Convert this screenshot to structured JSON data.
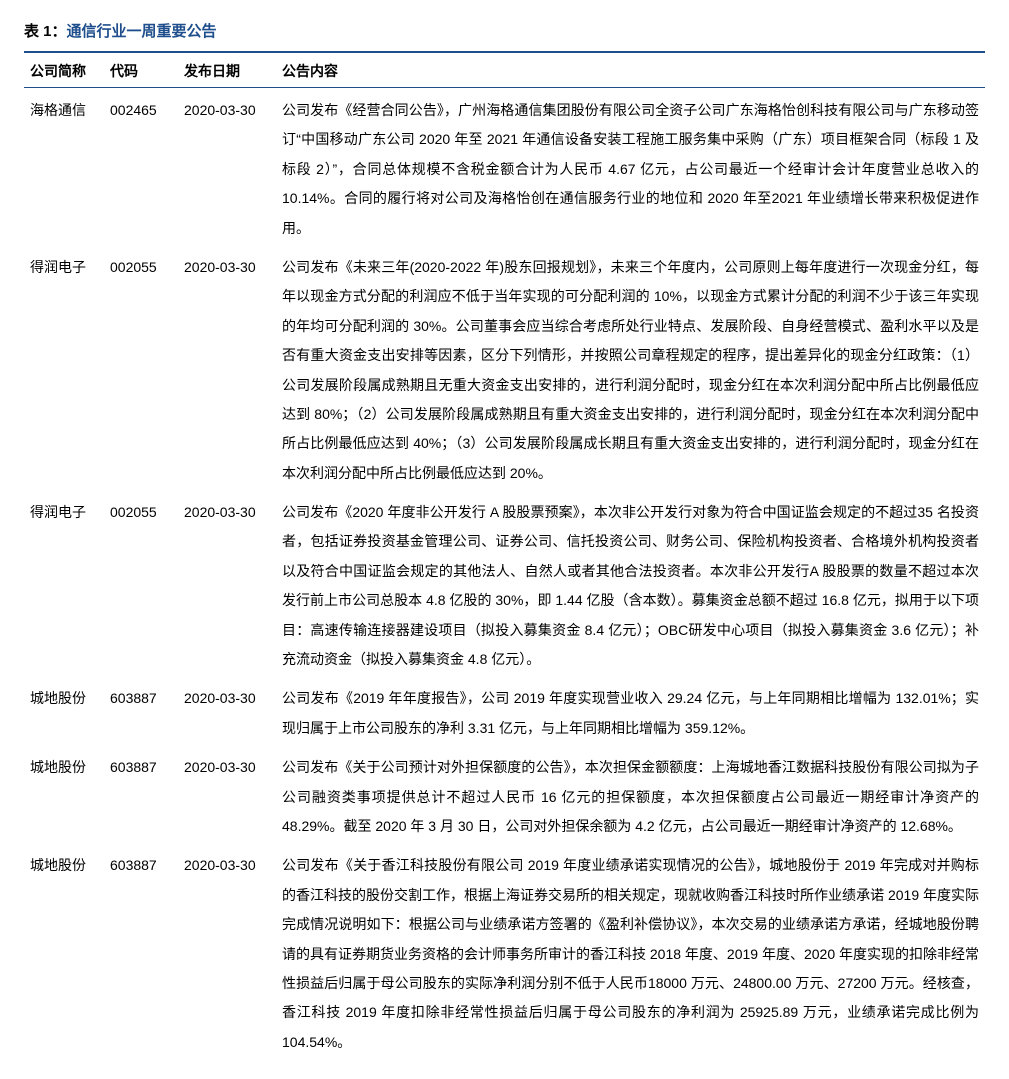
{
  "title_prefix": "表 1：",
  "title_text": "通信行业一周重要公告",
  "columns": [
    "公司简称",
    "代码",
    "发布日期",
    "公告内容"
  ],
  "rows": [
    {
      "company": "海格通信",
      "code": "002465",
      "date": "2020-03-30",
      "content": "公司发布《经营合同公告》，广州海格通信集团股份有限公司全资子公司广东海格怡创科技有限公司与广东移动签订“中国移动广东公司 2020 年至 2021 年通信设备安装工程施工服务集中采购（广东）项目框架合同（标段 1 及标段 2）”，合同总体规模不含税金额合计为人民币 4.67 亿元，占公司最近一个经审计会计年度营业总收入的 10.14%。合同的履行将对公司及海格怡创在通信服务行业的地位和 2020 年至2021 年业绩增长带来积极促进作用。"
    },
    {
      "company": "得润电子",
      "code": "002055",
      "date": "2020-03-30",
      "content": "公司发布《未来三年(2020-2022 年)股东回报规划》，未来三个年度内，公司原则上每年度进行一次现金分红，每年以现金方式分配的利润应不低于当年实现的可分配利润的 10%，以现金方式累计分配的利润不少于该三年实现的年均可分配利润的 30%。公司董事会应当综合考虑所处行业特点、发展阶段、自身经营模式、盈利水平以及是否有重大资金支出安排等因素，区分下列情形，并按照公司章程规定的程序，提出差异化的现金分红政策：（1）公司发展阶段属成熟期且无重大资金支出安排的，进行利润分配时，现金分红在本次利润分配中所占比例最低应达到 80%；（2）公司发展阶段属成熟期且有重大资金支出安排的，进行利润分配时，现金分红在本次利润分配中所占比例最低应达到 40%；（3）公司发展阶段属成长期且有重大资金支出安排的，进行利润分配时，现金分红在本次利润分配中所占比例最低应达到 20%。"
    },
    {
      "company": "得润电子",
      "code": "002055",
      "date": "2020-03-30",
      "content": "公司发布《2020 年度非公开发行 A 股股票预案》，本次非公开发行对象为符合中国证监会规定的不超过35 名投资者，包括证券投资基金管理公司、证券公司、信托投资公司、财务公司、保险机构投资者、合格境外机构投资者以及符合中国证监会规定的其他法人、自然人或者其他合法投资者。本次非公开发行A 股股票的数量不超过本次发行前上市公司总股本 4.8 亿股的 30%，即 1.44 亿股（含本数）。募集资金总额不超过 16.8 亿元，拟用于以下项目：高速传输连接器建设项目（拟投入募集资金 8.4 亿元）；OBC研发中心项目（拟投入募集资金 3.6 亿元）；补充流动资金（拟投入募集资金 4.8 亿元）。"
    },
    {
      "company": "城地股份",
      "code": "603887",
      "date": "2020-03-30",
      "content": "公司发布《2019 年年度报告》，公司 2019 年度实现营业收入 29.24 亿元，与上年同期相比增幅为 132.01%；实现归属于上市公司股东的净利 3.31 亿元，与上年同期相比增幅为 359.12%。"
    },
    {
      "company": "城地股份",
      "code": "603887",
      "date": "2020-03-30",
      "content": "公司发布《关于公司预计对外担保额度的公告》，本次担保金额额度：上海城地香江数据科技股份有限公司拟为子公司融资类事项提供总计不超过人民币 16 亿元的担保额度，本次担保额度占公司最近一期经审计净资产的 48.29%。截至 2020 年 3 月 30 日，公司对外担保余额为 4.2 亿元，占公司最近一期经审计净资产的 12.68%。"
    },
    {
      "company": "城地股份",
      "code": "603887",
      "date": "2020-03-30",
      "content": "公司发布《关于香江科技股份有限公司 2019 年度业绩承诺实现情况的公告》，城地股份于 2019 年完成对并购标的香江科技的股份交割工作，根据上海证券交易所的相关规定，现就收购香江科技时所作业绩承诺 2019 年度实际完成情况说明如下：根据公司与业绩承诺方签署的《盈利补偿协议》，本次交易的业绩承诺方承诺，经城地股份聘请的具有证券期货业务资格的会计师事务所审计的香江科技 2018 年度、2019 年度、2020 年度实现的扣除非经常性损益后归属于母公司股东的实际净利润分别不低于人民币18000 万元、24800.00 万元、27200 万元。经核查，香江科技 2019 年度扣除非经常性损益后归属于母公司股东的净利润为 25925.89 万元，业绩承诺完成比例为 104.54%。"
    }
  ]
}
